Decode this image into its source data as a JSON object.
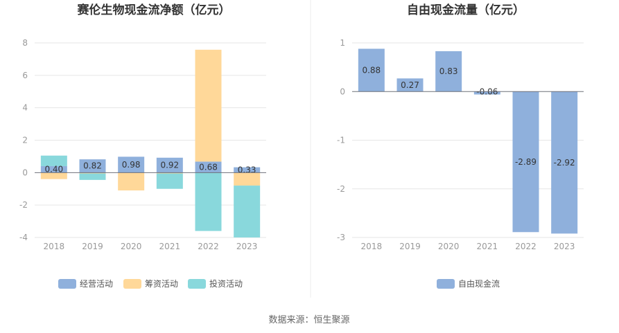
{
  "source_label": "数据来源：恒生聚源",
  "colors": {
    "operating": "#8fb0dc",
    "financing": "#ffd899",
    "investing": "#89d8dc",
    "fcf": "#8fb0dc",
    "divider": "#eeeeee"
  },
  "chart_data": [
    {
      "type": "bar",
      "stacked": true,
      "title": "赛伦生物现金流净额（亿元）",
      "categories": [
        "2018",
        "2019",
        "2020",
        "2021",
        "2022",
        "2023"
      ],
      "series": [
        {
          "name": "经营活动",
          "values": [
            0.4,
            0.82,
            0.98,
            0.92,
            0.68,
            0.33
          ]
        },
        {
          "name": "筹资活动",
          "values": [
            -0.4,
            -0.05,
            -1.1,
            -0.05,
            6.9,
            -0.8
          ]
        },
        {
          "name": "投资活动",
          "values": [
            0.65,
            -0.4,
            0.0,
            -0.95,
            -3.6,
            -3.2
          ]
        }
      ],
      "data_labels": [
        "0.40",
        "0.82",
        "0.98",
        "0.92",
        "0.68",
        "0.33"
      ],
      "yticks": [
        "8",
        "6",
        "4",
        "2",
        "0",
        "-2",
        "-4"
      ],
      "ylim": [
        -4,
        8
      ],
      "grid": true,
      "legend_position": "bottom"
    },
    {
      "type": "bar",
      "title": "自由现金流量（亿元）",
      "categories": [
        "2018",
        "2019",
        "2020",
        "2021",
        "2022",
        "2023"
      ],
      "series": [
        {
          "name": "自由现金流",
          "values": [
            0.88,
            0.27,
            0.83,
            -0.06,
            -2.89,
            -2.92
          ]
        }
      ],
      "data_labels": [
        "0.88",
        "0.27",
        "0.83",
        "-0.06",
        "-2.89",
        "-2.92"
      ],
      "yticks": [
        "1",
        "0",
        "-1",
        "-2",
        "-3"
      ],
      "ylim": [
        -3,
        1
      ],
      "grid": true,
      "legend_position": "bottom"
    }
  ]
}
